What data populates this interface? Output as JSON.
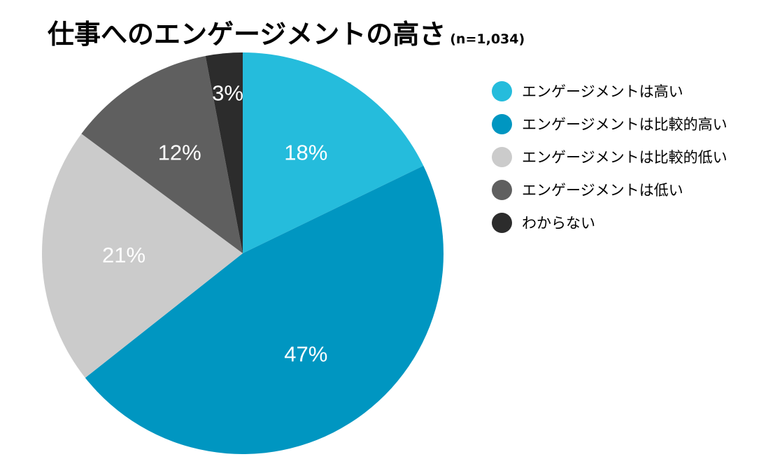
{
  "chart_data": {
    "type": "pie",
    "title": "仕事へのエンゲージメントの高さ",
    "subtitle": "(n=1,034)",
    "slices": [
      {
        "label": "エンゲージメントは高い",
        "value": 18,
        "display": "18%",
        "color": "#25BCDC"
      },
      {
        "label": "エンゲージメントは比較的高い",
        "value": 47,
        "display": "47%",
        "color": "#0096C1"
      },
      {
        "label": "エンゲージメントは比較的低い",
        "value": 21,
        "display": "21%",
        "color": "#CBCBCB"
      },
      {
        "label": "エンゲージメントは低い",
        "value": 12,
        "display": "12%",
        "color": "#5F5F5F"
      },
      {
        "label": "わからない",
        "value": 3,
        "display": "3%",
        "color": "#2C2C2C"
      }
    ],
    "start_angle": "12 o'clock",
    "direction": "clockwise",
    "legend_position": "right"
  }
}
